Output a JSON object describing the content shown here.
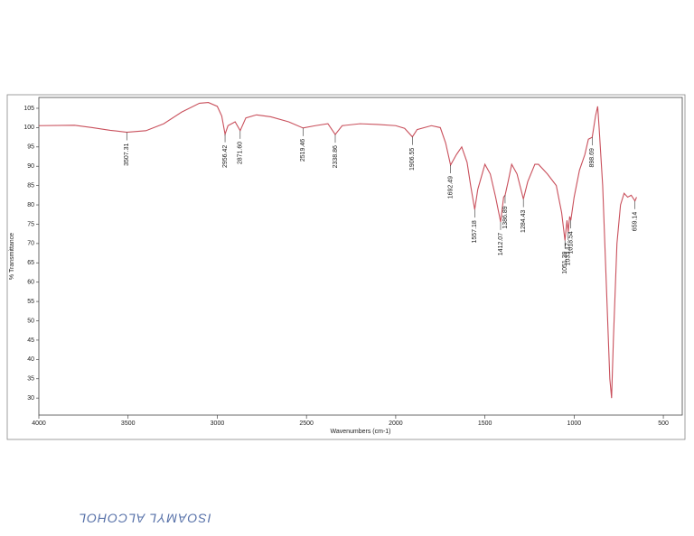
{
  "chart_data": {
    "type": "line",
    "x_label": "Wavenumbers (cm-1)",
    "y_label": "% Transmittance",
    "note": "ISOAMYL ALCOHOL",
    "color": "#c9505c",
    "x": [
      4000,
      3800,
      3700,
      3600,
      3507.31,
      3400,
      3300,
      3200,
      3100,
      3050,
      3000,
      2975,
      2956.42,
      2940,
      2900,
      2871.6,
      2840,
      2780,
      2700,
      2600,
      2519.46,
      2450,
      2380,
      2338.86,
      2300,
      2200,
      2100,
      2000,
      1950,
      1906.55,
      1880,
      1800,
      1750,
      1720,
      1692.49,
      1660,
      1630,
      1600,
      1580,
      1557.18,
      1540,
      1500,
      1470,
      1440,
      1412.07,
      1395,
      1386.89,
      1370,
      1350,
      1320,
      1284.43,
      1260,
      1220,
      1200,
      1150,
      1100,
      1070,
      1051.39,
      1040,
      1033.17,
      1025,
      1018.54,
      1000,
      970,
      940,
      920,
      898.69,
      880,
      868,
      860,
      840,
      820,
      800,
      790,
      780,
      760,
      740,
      720,
      700,
      680,
      659.14,
      650
    ],
    "values": [
      100.5,
      100.6,
      100,
      99.3,
      98.8,
      99.2,
      101,
      104,
      106.3,
      106.5,
      105.5,
      103,
      98.3,
      100.5,
      101.5,
      99.2,
      102.5,
      103.3,
      102.8,
      101.5,
      99.9,
      100.5,
      101,
      98.2,
      100.5,
      101,
      100.8,
      100.5,
      99.8,
      97.6,
      99.5,
      100.5,
      100,
      96,
      90.3,
      93,
      95,
      91,
      85,
      78.8,
      84,
      90.5,
      88,
      82,
      75.6,
      82,
      82.5,
      86,
      90.5,
      88,
      81.5,
      86,
      90.5,
      90.5,
      88,
      85,
      78,
      70.8,
      76,
      73,
      77,
      76,
      82,
      89,
      93,
      97,
      97.5,
      103,
      105.5,
      100,
      85,
      60,
      35,
      30,
      45,
      70,
      80,
      83,
      82,
      82.5,
      81,
      82
    ],
    "xlim": [
      4000,
      394
    ],
    "ylim": [
      25.6,
      107.8
    ],
    "xticks": [
      4000,
      3500,
      3000,
      2500,
      2000,
      1500,
      1000,
      500
    ],
    "yticks": [
      30,
      35,
      40,
      45,
      50,
      55,
      60,
      65,
      70,
      75,
      80,
      85,
      90,
      95,
      100,
      105
    ],
    "annotations": [
      {
        "label": "3507.31",
        "x": 3507.31,
        "y": 98.8
      },
      {
        "label": "2956.42",
        "x": 2956.42,
        "y": 98.3
      },
      {
        "label": "2871.60",
        "x": 2871.6,
        "y": 99.2
      },
      {
        "label": "2519.46",
        "x": 2519.46,
        "y": 99.9
      },
      {
        "label": "2338.86",
        "x": 2338.86,
        "y": 98.2
      },
      {
        "label": "1906.55",
        "x": 1906.55,
        "y": 97.6
      },
      {
        "label": "1692.49",
        "x": 1692.49,
        "y": 90.3
      },
      {
        "label": "1557.18",
        "x": 1557.18,
        "y": 78.8
      },
      {
        "label": "1412.07",
        "x": 1412.07,
        "y": 75.6
      },
      {
        "label": "1386.89",
        "x": 1386.89,
        "y": 82.5
      },
      {
        "label": "1284.43",
        "x": 1284.43,
        "y": 81.5
      },
      {
        "label": "1051.39",
        "x": 1051.39,
        "y": 70.8
      },
      {
        "label": "1033.17",
        "x": 1033.17,
        "y": 73
      },
      {
        "label": "1018.54",
        "x": 1018.54,
        "y": 76
      },
      {
        "label": "898.69",
        "x": 898.69,
        "y": 97.5
      },
      {
        "label": "659.14",
        "x": 659.14,
        "y": 81
      }
    ]
  }
}
